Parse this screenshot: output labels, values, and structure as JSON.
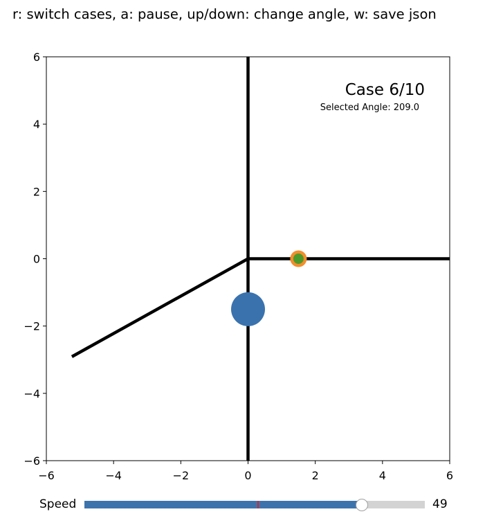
{
  "header": {
    "instructions": "r: switch cases, a: pause, up/down: change angle, w: save json"
  },
  "plot": {
    "case_label": "Case 6/10",
    "selected_angle_label": "Selected Angle: 209.0",
    "xlim": [
      -6,
      6
    ],
    "ylim": [
      -6,
      6
    ],
    "x_ticks": [
      "−6",
      "−4",
      "−2",
      "0",
      "2",
      "4",
      "6"
    ],
    "y_ticks": [
      "6",
      "4",
      "2",
      "0",
      "−2",
      "−4",
      "−6"
    ],
    "lines": [
      {
        "name": "vertical-wall",
        "points": [
          [
            0,
            6
          ],
          [
            0,
            -6
          ]
        ]
      },
      {
        "name": "horizontal-ray",
        "points": [
          [
            0,
            0
          ],
          [
            6,
            0
          ]
        ]
      },
      {
        "name": "angled-ray",
        "points": [
          [
            0,
            0
          ],
          [
            -5.24,
            -2.91
          ]
        ]
      }
    ],
    "ball": {
      "x": 0,
      "y": -1.5,
      "color": "#3a72ae"
    },
    "target": {
      "x": 1.5,
      "y": 0,
      "outer_color": "#f28e2b",
      "inner_color": "#4c9a2a"
    },
    "line_color": "#000000"
  },
  "controls": {
    "speed_label": "Speed",
    "speed_value": "49",
    "speed_fraction": 0.816,
    "speed_init_fraction": 0.51,
    "fill_color": "#3d73ad",
    "init_marker_color": "#d62728"
  }
}
